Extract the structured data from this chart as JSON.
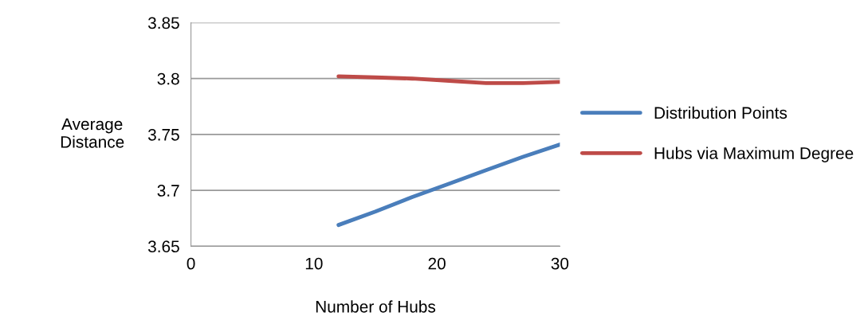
{
  "chart_data": {
    "type": "line",
    "xlabel": "Number of Hubs",
    "ylabel": "Average\nDistance",
    "xlim": [
      0,
      30
    ],
    "xticks": [
      0,
      10,
      20,
      30
    ],
    "ylim": [
      3.65,
      3.85
    ],
    "yticks": [
      3.65,
      3.7,
      3.75,
      3.8,
      3.85
    ],
    "grid": "y",
    "legend": "right",
    "line_style": "solid",
    "series": [
      {
        "name": "Distribution Points",
        "color": "#4a7ebb",
        "x": [
          12,
          15,
          18,
          21,
          24,
          27,
          30
        ],
        "values": [
          3.669,
          3.681,
          3.694,
          3.706,
          3.718,
          3.73,
          3.741
        ]
      },
      {
        "name": "Hubs via Maximum Degree",
        "color": "#be4b48",
        "x": [
          12,
          15,
          18,
          21,
          24,
          27,
          30
        ],
        "values": [
          3.802,
          3.801,
          3.8,
          3.798,
          3.796,
          3.796,
          3.797
        ]
      }
    ]
  }
}
